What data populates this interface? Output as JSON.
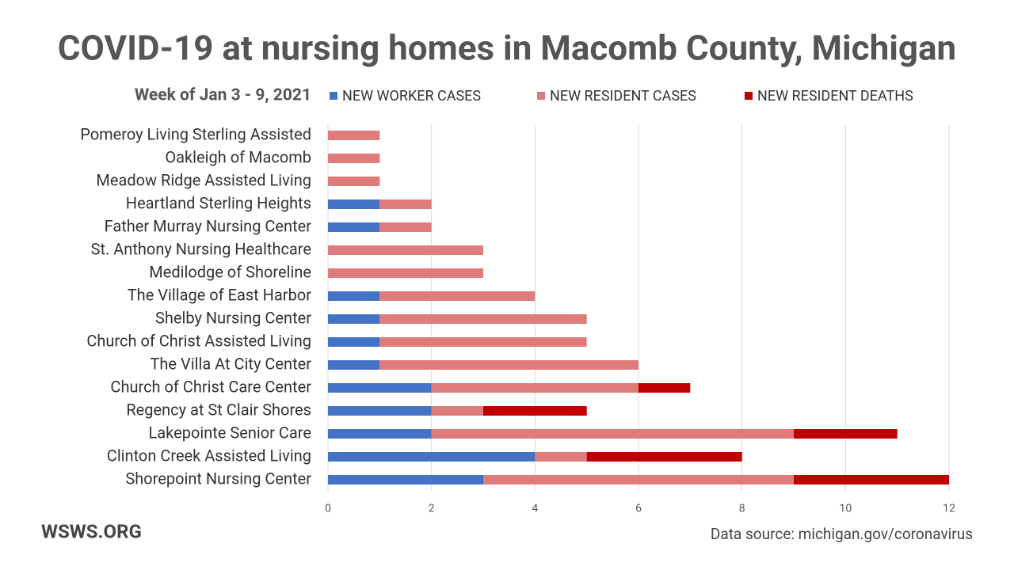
{
  "chart_data": {
    "type": "stacked-barh",
    "title": "COVID-19 at nursing homes in Macomb County, Michigan",
    "subtitle": "Week of Jan 3 - 9, 2021",
    "categories": [
      "Pomeroy Living Sterling Assisted",
      "Oakleigh of Macomb",
      "Meadow Ridge Assisted Living",
      "Heartland Sterling Heights",
      "Father Murray Nursing Center",
      "St. Anthony Nursing Healthcare",
      "Medilodge of Shoreline",
      "The Village of East Harbor",
      "Shelby Nursing Center",
      "Church of Christ Assisted Living",
      "The Villa At City Center",
      "Church of Christ Care Center",
      "Regency at St Clair Shores",
      "Lakepointe Senior Care",
      "Clinton Creek Assisted Living",
      "Shorepoint Nursing Center"
    ],
    "series": [
      {
        "name": "NEW WORKER CASES",
        "color": "#4472c4",
        "values": [
          0,
          0,
          0,
          1,
          1,
          0,
          0,
          1,
          1,
          1,
          1,
          2,
          2,
          2,
          4,
          3
        ]
      },
      {
        "name": "NEW RESIDENT CASES",
        "color": "#e07b7b",
        "values": [
          1,
          1,
          1,
          1,
          1,
          3,
          3,
          3,
          4,
          4,
          5,
          4,
          1,
          7,
          1,
          6
        ]
      },
      {
        "name": "NEW RESIDENT DEATHS",
        "color": "#c00000",
        "values": [
          0,
          0,
          0,
          0,
          0,
          0,
          0,
          0,
          0,
          0,
          0,
          1,
          2,
          2,
          3,
          3
        ]
      }
    ],
    "xlim": [
      0,
      12
    ],
    "xticks": [
      0,
      2,
      4,
      6,
      8,
      10,
      12
    ],
    "grid": true,
    "footer": "WSWS.ORG",
    "source": "Data source: michigan.gov/coronavirus"
  }
}
